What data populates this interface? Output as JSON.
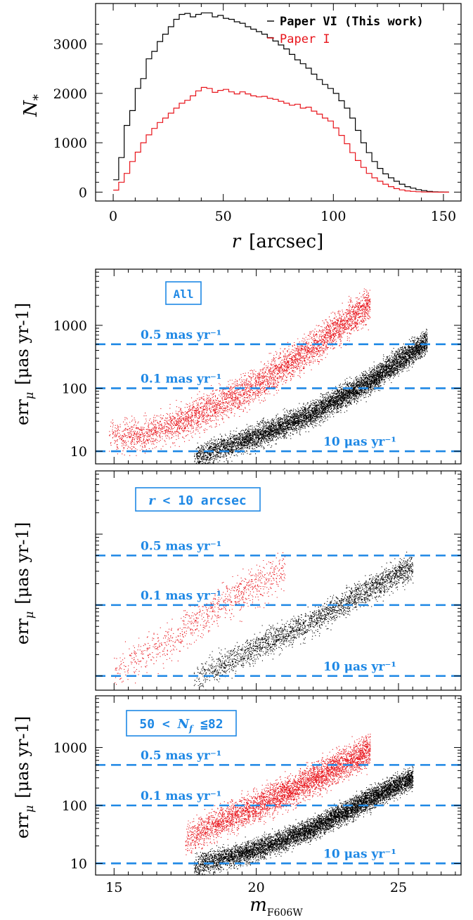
{
  "colors": {
    "paper_vi": "#000000",
    "paper_i": "#e8141b",
    "guide": "#1e88e5",
    "axis": "#000000"
  },
  "chart_data": [
    {
      "type": "line",
      "panel": "histogram",
      "xlabel_var": "r",
      "xlabel_unit": "[arcsec]",
      "ylabel": "N",
      "ylabel_sub": "*",
      "xlim": [
        -8,
        158
      ],
      "ylim": [
        -180,
        3820
      ],
      "xticks": [
        0,
        50,
        100,
        150
      ],
      "yticks": [
        0,
        1000,
        2000,
        3000
      ],
      "legend_position": "top-right",
      "series": [
        {
          "name": "Paper VI (This work)",
          "color": "#000000",
          "bin_start": 0,
          "bin_width": 2.5,
          "values": [
            250,
            700,
            1350,
            1650,
            2100,
            2300,
            2700,
            2850,
            3050,
            3200,
            3350,
            3500,
            3600,
            3620,
            3550,
            3600,
            3630,
            3630,
            3550,
            3580,
            3520,
            3500,
            3450,
            3420,
            3350,
            3300,
            3250,
            3200,
            3130,
            3060,
            2980,
            2900,
            2790,
            2680,
            2600,
            2510,
            2390,
            2280,
            2180,
            2100,
            2000,
            1850,
            1700,
            1500,
            1250,
            1000,
            800,
            620,
            480,
            370,
            290,
            220,
            160,
            110,
            80,
            50,
            30,
            15,
            5,
            2,
            0
          ]
        },
        {
          "name": "Paper I",
          "color": "#e8141b",
          "bin_start": 0,
          "bin_width": 2.5,
          "values": [
            40,
            200,
            380,
            620,
            810,
            1000,
            1160,
            1290,
            1410,
            1500,
            1600,
            1700,
            1800,
            1860,
            1950,
            2050,
            2120,
            2100,
            2020,
            2060,
            2080,
            2030,
            1990,
            2030,
            1990,
            1950,
            1930,
            1940,
            1900,
            1880,
            1840,
            1800,
            1760,
            1780,
            1700,
            1720,
            1640,
            1580,
            1500,
            1440,
            1300,
            1150,
            980,
            800,
            640,
            500,
            380,
            290,
            220,
            160,
            110,
            70,
            45,
            25,
            15,
            8,
            4,
            2,
            1,
            0,
            0
          ]
        }
      ]
    },
    {
      "type": "scatter",
      "panel": "all",
      "label": "All",
      "ylabel": "err",
      "ylabel_sub": "μ",
      "ylabel_unit": "[μas yr-1]",
      "log_y": true,
      "xlim": [
        14.35,
        27.2
      ],
      "ylim": [
        6.3,
        7800
      ],
      "yticks": [
        10,
        100,
        1000
      ],
      "guide_lines": [
        {
          "value": 500,
          "label": "0.5 mas yr⁻¹"
        },
        {
          "value": 100,
          "label": "0.1 mas yr⁻¹"
        },
        {
          "value": 10,
          "label": "10 μas yr⁻¹"
        }
      ],
      "series": [
        {
          "name": "Paper VI (This work)",
          "color": "#000000",
          "trend": {
            "x": [
              17.8,
              20,
              22,
              24,
              26
            ],
            "y": [
              8,
              17,
              40,
              130,
              550
            ]
          }
        },
        {
          "name": "Paper I",
          "color": "#e8141b",
          "trend": {
            "x": [
              14.8,
              16,
              17.5,
              20,
              22,
              24
            ],
            "y": [
              18,
              18,
              30,
              110,
              450,
              2200
            ]
          }
        }
      ]
    },
    {
      "type": "scatter",
      "panel": "inner",
      "label_var": "r",
      "label_rest": " < 10 arcsec",
      "ylabel": "err",
      "ylabel_sub": "μ",
      "ylabel_unit": "[μas yr-1]",
      "log_y": true,
      "xlim": [
        14.35,
        27.2
      ],
      "ylim": [
        6.3,
        7800
      ],
      "guide_lines": [
        {
          "value": 500,
          "label": "0.5 mas yr⁻¹"
        },
        {
          "value": 100,
          "label": "0.1 mas yr⁻¹"
        },
        {
          "value": 10,
          "label": "10 μas yr⁻¹"
        }
      ],
      "series": [
        {
          "name": "Paper VI (This work)",
          "color": "#000000",
          "trend": {
            "x": [
              17.8,
              20,
              22,
              24,
              25.5
            ],
            "y": [
              9,
              25,
              60,
              170,
              350
            ]
          }
        },
        {
          "name": "Paper I",
          "color": "#e8141b",
          "trend": {
            "x": [
              15,
              16.5,
              18,
              19.5,
              21
            ],
            "y": [
              12,
              25,
              60,
              150,
              320
            ]
          }
        }
      ]
    },
    {
      "type": "scatter",
      "panel": "nf",
      "label_pre": "50 < ",
      "label_var": "N",
      "label_sub": "f",
      "label_post": " ≦82",
      "ylabel": "err",
      "ylabel_sub": "μ",
      "ylabel_unit": "[μas yr-1]",
      "log_y": true,
      "xlim": [
        14.35,
        27.2
      ],
      "ylim": [
        6.3,
        7800
      ],
      "xticks": [
        15,
        20,
        25
      ],
      "yticks": [
        10,
        100,
        1000
      ],
      "xlabel": "m",
      "xlabel_sub": "F606W",
      "guide_lines": [
        {
          "value": 500,
          "label": "0.5 mas yr⁻¹"
        },
        {
          "value": 100,
          "label": "0.1 mas yr⁻¹"
        },
        {
          "value": 10,
          "label": "10 μas yr⁻¹"
        }
      ],
      "series": [
        {
          "name": "Paper VI (This work)",
          "color": "#000000",
          "trend": {
            "x": [
              17.8,
              20,
              22,
              24,
              25.5
            ],
            "y": [
              9,
              17,
              40,
              130,
              300
            ]
          }
        },
        {
          "name": "Paper I",
          "color": "#e8141b",
          "trend": {
            "x": [
              17.5,
              19,
              21,
              23,
              24
            ],
            "y": [
              25,
              60,
              160,
              500,
              900
            ]
          }
        }
      ]
    }
  ]
}
